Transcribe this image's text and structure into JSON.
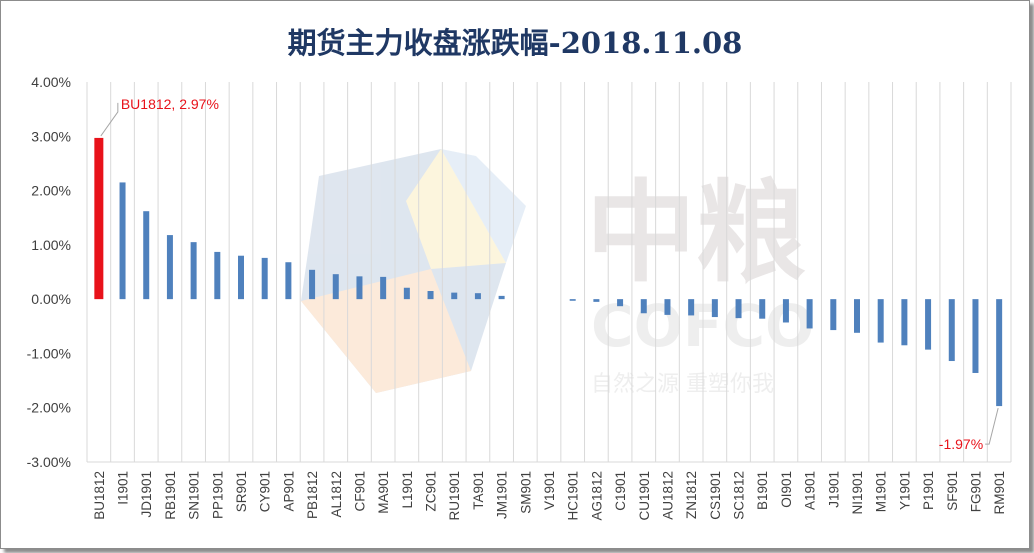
{
  "chart_data": {
    "type": "bar",
    "title": "期货主力收盘涨跌幅-2018.11.08",
    "xlabel": "",
    "ylabel": "",
    "ylim": [
      -0.03,
      0.04
    ],
    "yticks": [
      "4.00%",
      "3.00%",
      "2.00%",
      "1.00%",
      "0.00%",
      "-1.00%",
      "-2.00%",
      "-3.00%"
    ],
    "grid": "vertical",
    "categories": [
      "BU1812",
      "I1901",
      "JD1901",
      "RB1901",
      "SN1901",
      "PP1901",
      "SR901",
      "CY901",
      "AP901",
      "PB1812",
      "AL1812",
      "CF901",
      "MA901",
      "L1901",
      "ZC901",
      "RU1901",
      "TA901",
      "JM1901",
      "SM901",
      "V1901",
      "HC1901",
      "AG1812",
      "C1901",
      "CU1901",
      "AU1812",
      "ZN1812",
      "CS1901",
      "SC1812",
      "B1901",
      "OI901",
      "A1901",
      "J1901",
      "NI1901",
      "M1901",
      "Y1901",
      "P1901",
      "SF901",
      "FG901",
      "RM901"
    ],
    "values": [
      0.0297,
      0.0215,
      0.0162,
      0.0118,
      0.0105,
      0.0087,
      0.008,
      0.0076,
      0.0068,
      0.0054,
      0.0046,
      0.0042,
      0.0041,
      0.0021,
      0.0015,
      0.0012,
      0.0011,
      0.0006,
      0.0,
      0.0,
      -0.0003,
      -0.0005,
      -0.0013,
      -0.0026,
      -0.0029,
      -0.003,
      -0.0033,
      -0.0035,
      -0.0036,
      -0.0043,
      -0.0054,
      -0.0057,
      -0.0062,
      -0.008,
      -0.0085,
      -0.0093,
      -0.0114,
      -0.0136,
      -0.0197
    ],
    "highlight_index": 0,
    "bar_color": "#4f81bd",
    "highlight_color": "#e8121a",
    "label_color": "#e8121a",
    "annotations": [
      {
        "index": 0,
        "text": "BU1812, 2.97%"
      },
      {
        "index": 38,
        "text": "-1.97%"
      }
    ]
  },
  "watermark": {
    "brand_cn": "中粮",
    "brand_en": "COFCO",
    "slogan": "自然之源 重塑你我"
  }
}
